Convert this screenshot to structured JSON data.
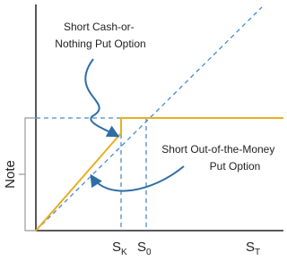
{
  "y_label": "Note",
  "annotations": [
    {
      "lines": [
        "Short Cash-or-",
        "Nothing Put Option"
      ]
    },
    {
      "lines": [
        "Short Out-of-the-Money",
        "Put Option"
      ]
    }
  ],
  "x_labels": [
    {
      "main": "S",
      "sub": "K"
    },
    {
      "main": "S",
      "sub": "0"
    },
    {
      "main": "S",
      "sub": "T"
    }
  ]
}
